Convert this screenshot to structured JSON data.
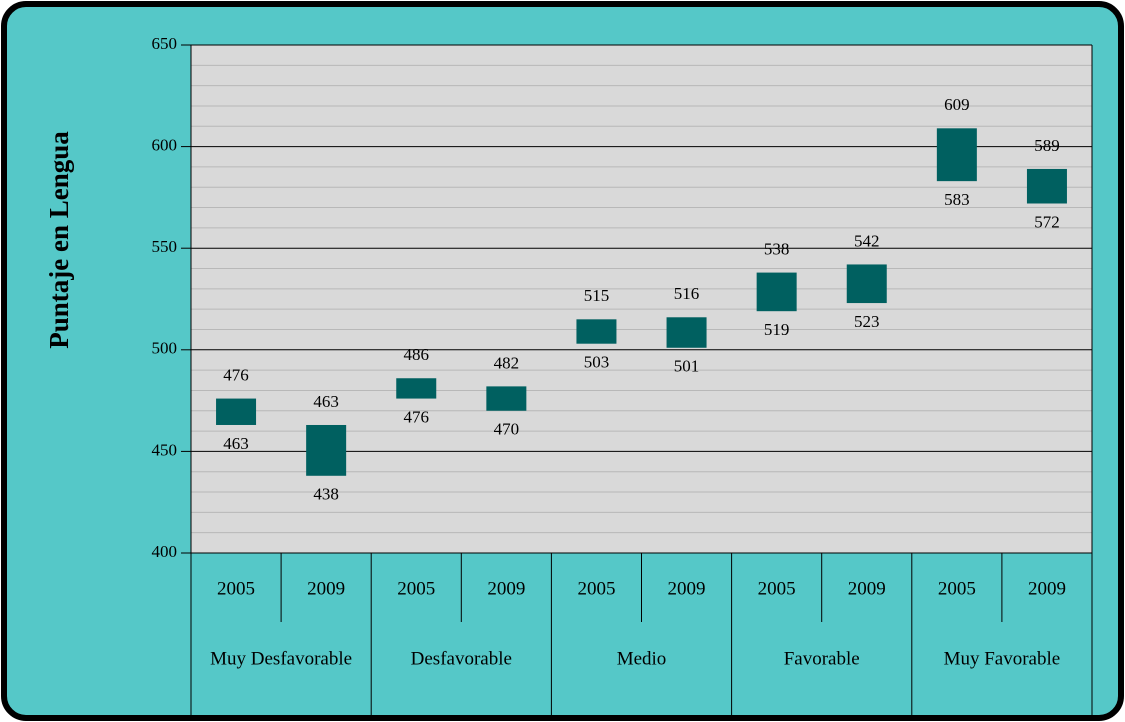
{
  "chart_data": {
    "type": "floating_bar",
    "ylabel": "Puntaje en Lengua",
    "categories": [
      "2005",
      "2009",
      "2005",
      "2009",
      "2005",
      "2009",
      "2005",
      "2009",
      "2005",
      "2009"
    ],
    "groups": [
      "Muy Desfavorable",
      "Desfavorable",
      "Medio",
      "Favorable",
      "Muy Favorable"
    ],
    "low": [
      463,
      438,
      476,
      470,
      503,
      501,
      519,
      523,
      583,
      572
    ],
    "high": [
      476,
      463,
      486,
      482,
      515,
      516,
      538,
      542,
      609,
      589
    ],
    "color": "#006060",
    "ylim": [
      400,
      650
    ],
    "yticks": [
      400,
      450,
      500,
      550,
      600,
      650
    ],
    "minor_yticks": [
      410,
      420,
      430,
      440,
      460,
      470,
      480,
      490,
      510,
      520,
      530,
      540,
      560,
      570,
      580,
      590,
      610,
      620,
      630,
      640
    ],
    "grid": true
  }
}
